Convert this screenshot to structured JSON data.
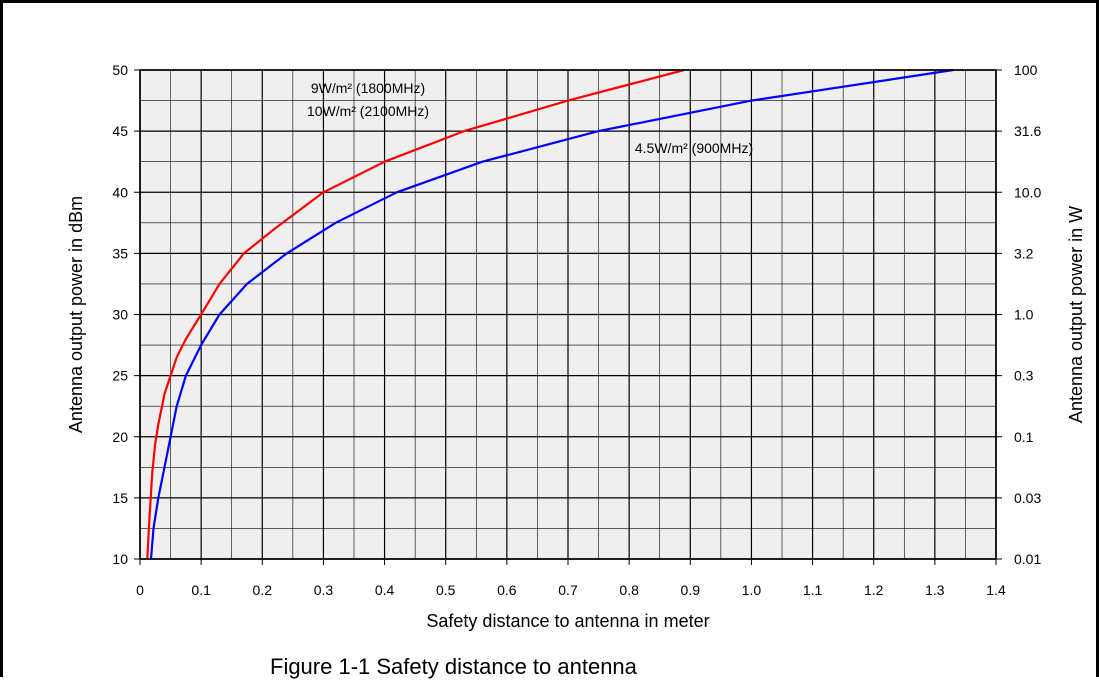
{
  "chart_data": {
    "type": "line",
    "xlabel": "Safety distance to antenna in meter",
    "ylabel": "Antenna output power in dBm",
    "y2label": "Antenna output power in W",
    "xlim": [
      0,
      1.4
    ],
    "ylim": [
      10,
      50
    ],
    "x_ticks": [
      "0",
      "0.1",
      "0.2",
      "0.3",
      "0.4",
      "0.5",
      "0.6",
      "0.7",
      "0.8",
      "0.9",
      "1.0",
      "1.1",
      "1.2",
      "1.3",
      "1.4"
    ],
    "y_ticks": [
      "10",
      "15",
      "20",
      "25",
      "30",
      "35",
      "40",
      "45",
      "50"
    ],
    "y2_ticks": [
      "0.01",
      "0.03",
      "0.1",
      "0.3",
      "1.0",
      "3.2",
      "10.0",
      "31.6",
      "100"
    ],
    "grid": true,
    "series": [
      {
        "name": "9W/m² (1800MHz) 10W/m² (2100MHz)",
        "color": "#ff0000",
        "x": [
          0.012,
          0.015,
          0.02,
          0.025,
          0.03,
          0.04,
          0.05,
          0.06,
          0.075,
          0.1,
          0.13,
          0.17,
          0.22,
          0.3,
          0.4,
          0.53,
          0.7,
          0.89
        ],
        "y": [
          10,
          13,
          17,
          19.5,
          21,
          23.5,
          25,
          26.5,
          28,
          30,
          32.5,
          35,
          37,
          40,
          42.5,
          45,
          47.5,
          50
        ]
      },
      {
        "name": "4.5W/m² (900MHz)",
        "color": "#0000ff",
        "x": [
          0.018,
          0.022,
          0.03,
          0.04,
          0.05,
          0.06,
          0.075,
          0.1,
          0.13,
          0.175,
          0.24,
          0.32,
          0.42,
          0.56,
          0.75,
          1.0,
          1.33
        ],
        "y": [
          10,
          12.5,
          15,
          17.5,
          20,
          22.5,
          25,
          27.5,
          30,
          32.5,
          35,
          37.5,
          40,
          42.5,
          45,
          47.5,
          50
        ]
      }
    ],
    "annotations": [
      {
        "text": "9W/m² (1800MHz)",
        "color": "#ff0000"
      },
      {
        "text": "10W/m² (2100MHz)",
        "color": "#ff0000"
      },
      {
        "text": "4.5W/m² (900MHz)",
        "color": "#0000ff"
      }
    ]
  },
  "caption": "Figure 1-1 Safety distance to antenna"
}
